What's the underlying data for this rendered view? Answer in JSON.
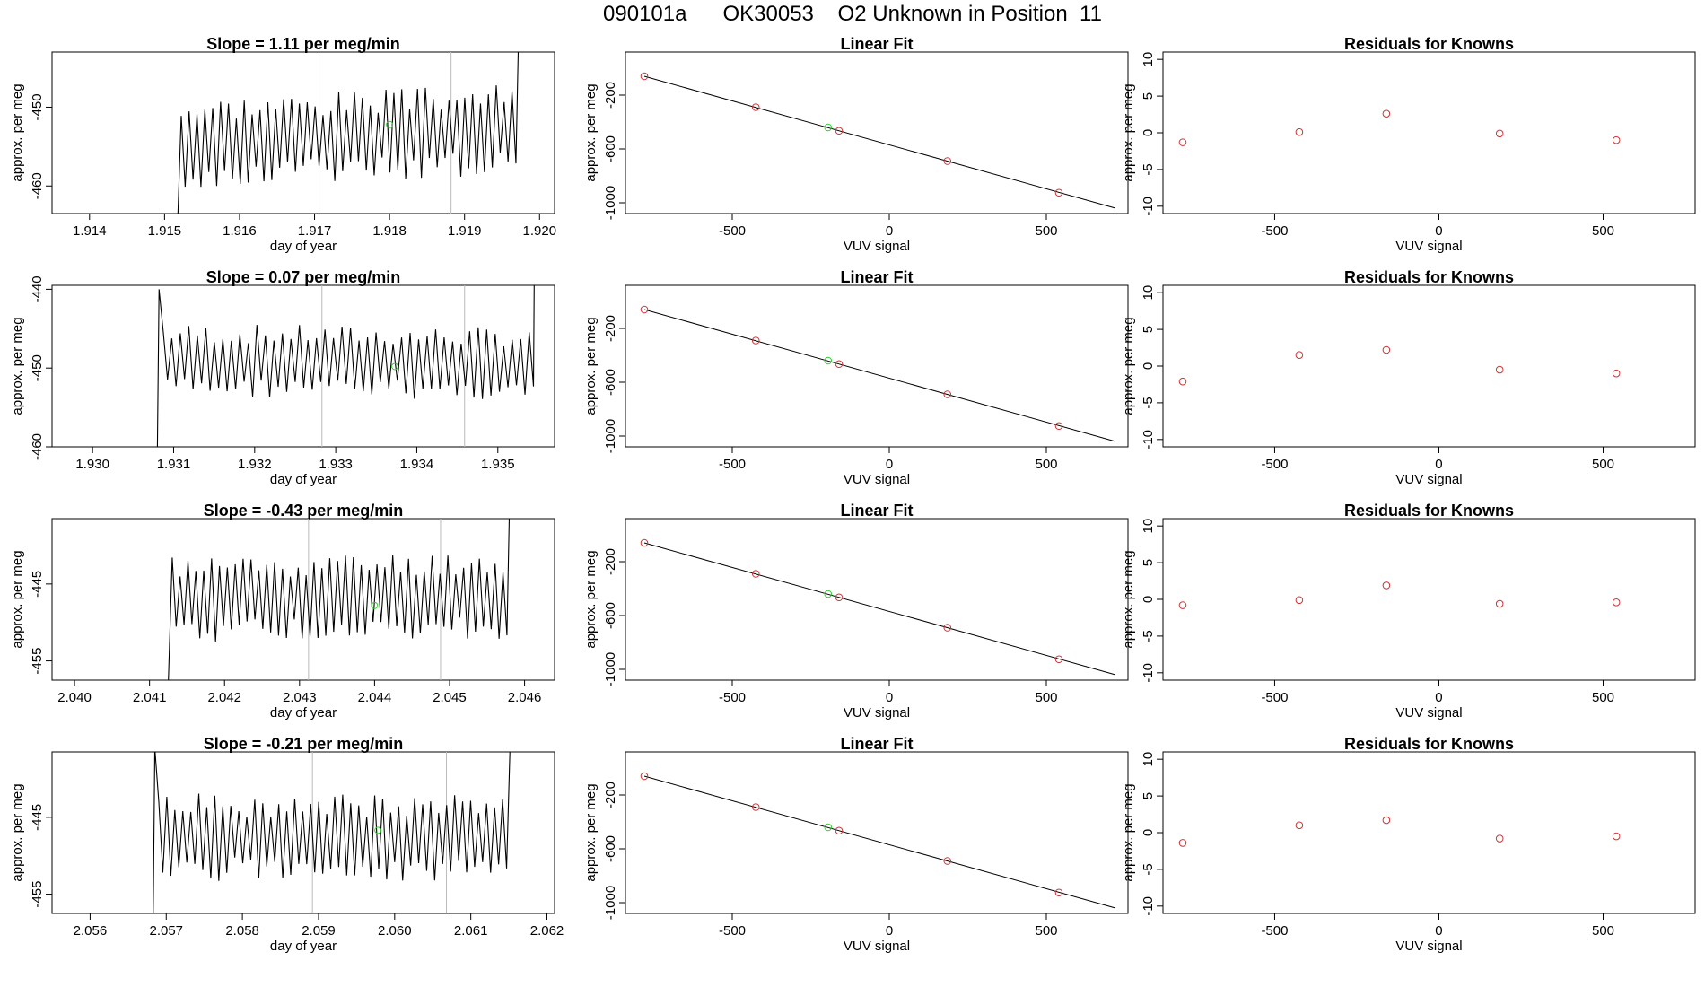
{
  "page_title": "090101a      OK30053    O2 Unknown in Position  11",
  "colors": {
    "line": "#000000",
    "known_point": "#cc3333",
    "unknown_point": "#33cc33",
    "reference_line": "#bbbbbb"
  },
  "chart_data": [
    {
      "panel": "time-series-1",
      "type": "line",
      "title": "Slope =  1.11  per meg/min",
      "xlabel": "day of year",
      "ylabel": "approx. per meg",
      "xlim": [
        1.9135,
        1.9202
      ],
      "ylim": [
        -463.5,
        -443.0
      ],
      "xticks": [
        "1.914",
        "1.915",
        "1.916",
        "1.917",
        "1.918",
        "1.919",
        "1.920"
      ],
      "yticks": [
        "-460",
        "-450"
      ],
      "vlines": [
        1.91706,
        1.91882
      ],
      "unknown_marker": {
        "x": 1.918,
        "y": -452.2
      },
      "start_x": 1.91517,
      "end_x": 1.91972,
      "start_y": -466,
      "base": -454.5,
      "trend": 1.7,
      "period": 0.000105,
      "amplitude": 4.5,
      "seed": 3
    },
    {
      "panel": "time-series-2",
      "type": "line",
      "title": "Slope =  0.07  per meg/min",
      "xlabel": "day of year",
      "ylabel": "approx. per meg",
      "xlim": [
        1.9295,
        1.9357
      ],
      "ylim": [
        -460.0,
        -439.5
      ],
      "xticks": [
        "1.930",
        "1.931",
        "1.932",
        "1.933",
        "1.934",
        "1.935"
      ],
      "yticks": [
        "-460",
        "-450",
        "-440"
      ],
      "vlines": [
        1.93283,
        1.93459
      ],
      "unknown_marker": {
        "x": 1.93373,
        "y": -449.8
      },
      "start_x": 1.93082,
      "end_x": 1.93545,
      "start_y": -440,
      "base": -449.0,
      "trend": -0.5,
      "period": 0.000105,
      "amplitude": 3.6,
      "seed": 7
    },
    {
      "panel": "time-series-3",
      "type": "line",
      "title": "Slope =  -0.43  per meg/min",
      "xlabel": "day of year",
      "ylabel": "approx. per meg",
      "xlim": [
        2.0397,
        2.0464
      ],
      "ylim": [
        -457.5,
        -436.5
      ],
      "xticks": [
        "2.040",
        "2.041",
        "2.042",
        "2.043",
        "2.044",
        "2.045",
        "2.046"
      ],
      "yticks": [
        "-455",
        "-445"
      ],
      "vlines": [
        2.04312,
        2.04488
      ],
      "unknown_marker": {
        "x": 2.044,
        "y": -447.8
      },
      "start_x": 2.04125,
      "end_x": 2.0458,
      "start_y": -458,
      "base": -447.0,
      "trend": 0.6,
      "period": 0.000105,
      "amplitude": 4.4,
      "seed": 11
    },
    {
      "panel": "time-series-4",
      "type": "line",
      "title": "Slope =  -0.21  per meg/min",
      "xlabel": "day of year",
      "ylabel": "approx. per meg",
      "xlim": [
        2.0555,
        2.0621
      ],
      "ylim": [
        -457.5,
        -436.5
      ],
      "xticks": [
        "2.056",
        "2.057",
        "2.058",
        "2.059",
        "2.060",
        "2.061",
        "2.062"
      ],
      "yticks": [
        "-455",
        "-445"
      ],
      "vlines": [
        2.05892,
        2.06068
      ],
      "unknown_marker": {
        "x": 2.05978,
        "y": -446.7
      },
      "start_x": 2.05685,
      "end_x": 2.06152,
      "start_y": -436,
      "base": -447.5,
      "trend": -0.4,
      "period": 0.000105,
      "amplitude": 4.4,
      "seed": 19
    },
    {
      "panel": "linear-fit",
      "type": "scatter",
      "repeat": 4,
      "title": "Linear Fit",
      "xlabel": "VUV signal",
      "ylabel": "approx. per meg",
      "xlim": [
        -840,
        760
      ],
      "ylim": [
        -1080,
        120
      ],
      "xticks": [
        "-500",
        "0",
        "500"
      ],
      "yticks": [
        "-1000",
        "-600",
        "-200"
      ],
      "fit_line": [
        [
          -780,
          -60
        ],
        [
          720,
          -1040
        ]
      ],
      "known_points": [
        [
          -780,
          -60
        ],
        [
          -425,
          -290
        ],
        [
          -160,
          -465
        ],
        [
          185,
          -690
        ],
        [
          540,
          -925
        ]
      ],
      "unknown_point": [
        -195,
        -440
      ]
    },
    {
      "panel": "residuals",
      "type": "scatter",
      "title": "Residuals for Knowns",
      "xlabel": "VUV signal",
      "ylabel": "approx. per meg",
      "xlim": [
        -840,
        780
      ],
      "ylim": [
        -11,
        11
      ],
      "xticks": [
        "-500",
        "0",
        "500"
      ],
      "yticks": [
        "-10",
        "-5",
        "0",
        "5",
        "10"
      ],
      "x_positions": [
        -780,
        -425,
        -160,
        185,
        540
      ],
      "residual_sets": [
        [
          -1.3,
          0.1,
          2.6,
          -0.1,
          -1.0
        ],
        [
          -2.1,
          1.5,
          2.2,
          -0.5,
          -1.0
        ],
        [
          -0.8,
          -0.1,
          1.9,
          -0.6,
          -0.4
        ],
        [
          -1.4,
          1.0,
          1.7,
          -0.8,
          -0.5
        ]
      ]
    }
  ]
}
